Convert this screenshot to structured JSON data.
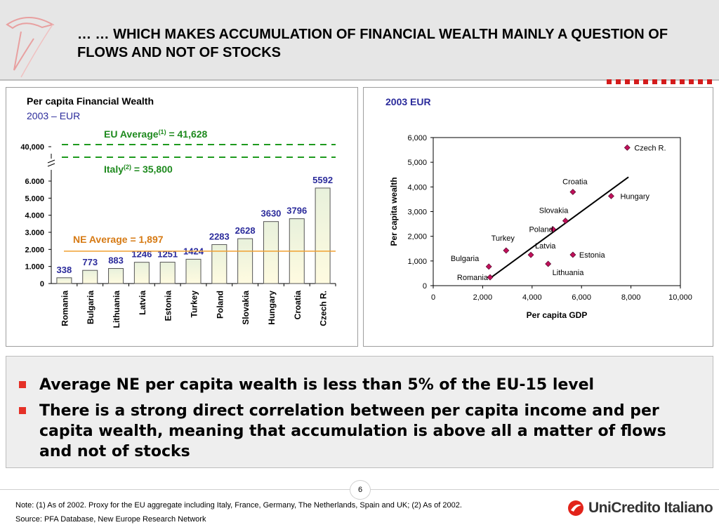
{
  "header": {
    "title": "… … WHICH MAKES ACCUMULATION OF FINANCIAL WEALTH MAINLY A QUESTION OF FLOWS AND NOT OF STOCKS"
  },
  "left_panel": {
    "title": "Per capita Financial Wealth",
    "subtitle": "2003 – EUR",
    "eu_average_label": "EU Average",
    "eu_average_sup": "(1)",
    "eu_average_value": " = 41,628",
    "italy_label": "Italy",
    "italy_sup": "(2)",
    "italy_value": " = 35,800",
    "ne_average_label": "NE Average = 1,897",
    "break_axis_tick": "40,000"
  },
  "right_panel": {
    "title": "2003 EUR"
  },
  "chart_data": [
    {
      "type": "bar",
      "title": "Per capita Financial Wealth",
      "subtitle": "2003 – EUR",
      "categories": [
        "Romania",
        "Bulgaria",
        "Lithuania",
        "Latvia",
        "Estonia",
        "Turkey",
        "Poland",
        "Slovakia",
        "Hungary",
        "Croatia",
        "Czech R."
      ],
      "values": [
        338,
        773,
        883,
        1246,
        1251,
        1424,
        2283,
        2628,
        3630,
        3796,
        5592
      ],
      "data_labels": [
        "338",
        "773",
        "883",
        "1246",
        "1251",
        "1424",
        "2283",
        "2628",
        "3630",
        "3796",
        "5592"
      ],
      "ylim": [
        0,
        6000
      ],
      "y_ticks": [
        0,
        1000,
        2000,
        3000,
        4000,
        5000,
        6000
      ],
      "y_tick_labels": [
        "0",
        "1.000",
        "2.000",
        "3.000",
        "4.000",
        "5.000",
        "6.000"
      ],
      "broken_axis_value": 40000,
      "reference_lines": [
        {
          "label": "EU Average = 41,628",
          "value": 41628,
          "style": "dashed",
          "color": "#1e9a1e"
        },
        {
          "label": "Italy = 35,800",
          "value": 35800,
          "style": "dashed",
          "color": "#1e9a1e"
        },
        {
          "label": "NE Average = 1,897",
          "value": 1897,
          "style": "solid",
          "color": "#f0a030"
        }
      ],
      "grid": false,
      "colors": {
        "bar_low": "#fffbe0",
        "bar_high": "#e8f1dc",
        "label": "#2b2b9b",
        "ne_avg": "#d67a14",
        "eu_avg": "#1e8a1e"
      }
    },
    {
      "type": "scatter",
      "title": "2003 EUR",
      "xlabel": "Per capita GDP",
      "ylabel": "Per capita wealth",
      "xlim": [
        0,
        10000
      ],
      "ylim": [
        0,
        6000
      ],
      "x_ticks": [
        0,
        2000,
        4000,
        6000,
        8000,
        10000
      ],
      "x_tick_labels": [
        "0",
        "2,000",
        "4,000",
        "6,000",
        "8,000",
        "10,000"
      ],
      "y_ticks": [
        0,
        1000,
        2000,
        3000,
        4000,
        5000,
        6000
      ],
      "y_tick_labels": [
        "0",
        "1,000",
        "2,000",
        "3,000",
        "4,000",
        "5,000",
        "6,000"
      ],
      "points": [
        {
          "name": "Romania",
          "x": 2300,
          "y": 338
        },
        {
          "name": "Bulgaria",
          "x": 2250,
          "y": 773
        },
        {
          "name": "Turkey",
          "x": 2950,
          "y": 1424
        },
        {
          "name": "Latvia",
          "x": 3950,
          "y": 1246
        },
        {
          "name": "Lithuania",
          "x": 4650,
          "y": 883
        },
        {
          "name": "Poland",
          "x": 4850,
          "y": 2283
        },
        {
          "name": "Slovakia",
          "x": 5350,
          "y": 2628
        },
        {
          "name": "Estonia",
          "x": 5650,
          "y": 1251
        },
        {
          "name": "Croatia",
          "x": 5650,
          "y": 3796
        },
        {
          "name": "Hungary",
          "x": 7200,
          "y": 3630
        },
        {
          "name": "Czech R.",
          "x": 7850,
          "y": 5592
        }
      ],
      "trendline": {
        "x": [
          2300,
          7900
        ],
        "y": [
          300,
          4400
        ]
      },
      "grid": false,
      "colors": {
        "marker": "#c0105a",
        "trend": "#000000"
      }
    }
  ],
  "bullets": [
    "Average NE per capita wealth is less than 5% of the EU-15 level",
    "There is a strong direct correlation between per capita income and per capita wealth, meaning that accumulation is above all a matter of flows and not of stocks"
  ],
  "footer": {
    "page_number": "6",
    "note": "Note: (1) As of 2002. Proxy for the EU aggregate including Italy, France, Germany, The Netherlands, Spain and UK; (2) As of 2002.",
    "source": "Source: PFA Database, New Europe Research Network",
    "brand": "UniCredito Italiano"
  }
}
